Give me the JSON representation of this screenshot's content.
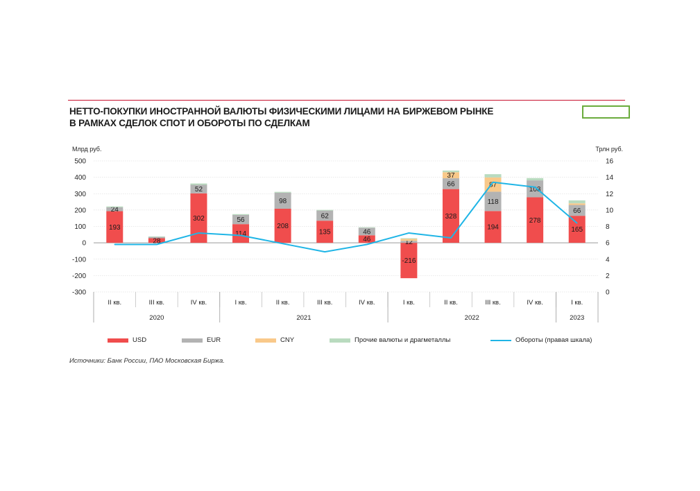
{
  "title": {
    "line1": "НЕТТО-ПОКУПКИ ИНОСТРАННОЙ ВАЛЮТЫ ФИЗИЧЕСКИМИ ЛИЦАМИ НА БИРЖЕВОМ РЫНКЕ",
    "line2": "В РАМКАХ СДЕЛОК СПОТ И ОБОРОТЫ ПО СДЕЛКАМ"
  },
  "source": "Источники: Банк России, ПАО Московская Биржа.",
  "colors": {
    "usd": "#f04d4d",
    "eur": "#b3b3b3",
    "cny": "#f9c98a",
    "other": "#b9dbbf",
    "turnover": "#1fb5e6",
    "accent": "#c8102e",
    "box": "#6aab3c"
  },
  "chart_data": {
    "type": "bar",
    "stacked": true,
    "title": "НЕТТО-ПОКУПКИ ИНОСТРАННОЙ ВАЛЮТЫ ФИЗИЧЕСКИМИ ЛИЦАМИ НА БИРЖЕВОМ РЫНКЕ В РАМКАХ СДЕЛОК СПОТ И ОБОРОТЫ ПО СДЕЛКАМ",
    "ylabel": "Млрд руб.",
    "y2label": "Трлн руб.",
    "ylim": [
      -300,
      500
    ],
    "y2lim": [
      0,
      16
    ],
    "yticks": [
      500,
      400,
      300,
      200,
      100,
      0,
      -100,
      -200,
      -300
    ],
    "y2ticks": [
      16,
      14,
      12,
      10,
      8,
      6,
      4,
      2,
      0
    ],
    "categories": [
      "II кв.",
      "III кв.",
      "IV кв.",
      "I кв.",
      "II кв.",
      "III кв.",
      "IV кв.",
      "I кв.",
      "II кв.",
      "III кв.",
      "IV кв.",
      "I кв."
    ],
    "year_groups": [
      {
        "label": "2020",
        "start": 0,
        "end": 2
      },
      {
        "label": "2021",
        "start": 3,
        "end": 6
      },
      {
        "label": "2022",
        "start": 7,
        "end": 10
      },
      {
        "label": "2023",
        "start": 11,
        "end": 11
      }
    ],
    "series": [
      {
        "name": "USD",
        "key": "usd",
        "values": [
          193,
          28,
          302,
          114,
          208,
          135,
          46,
          -216,
          328,
          194,
          278,
          165
        ]
      },
      {
        "name": "EUR",
        "key": "eur",
        "values": [
          24,
          8,
          52,
          56,
          98,
          62,
          46,
          12,
          66,
          118,
          103,
          66
        ]
      },
      {
        "name": "CNY",
        "key": "cny",
        "values": [
          0,
          0,
          0,
          0,
          0,
          0,
          0,
          12,
          37,
          87,
          0,
          10
        ]
      },
      {
        "name": "Прочие валюты и драгметаллы",
        "key": "other",
        "values": [
          5,
          3,
          8,
          5,
          5,
          4,
          3,
          4,
          10,
          20,
          14,
          18
        ]
      }
    ],
    "labels": [
      {
        "usd": "193",
        "eur": "24"
      },
      {
        "usd": "28"
      },
      {
        "usd": "302",
        "eur": "52"
      },
      {
        "usd": "114",
        "eur": "56"
      },
      {
        "usd": "208",
        "eur": "98"
      },
      {
        "usd": "135",
        "eur": "62"
      },
      {
        "usd": "46",
        "eur": "46"
      },
      {
        "usd": "-216",
        "eur": "12"
      },
      {
        "usd": "328",
        "eur": "66",
        "cny": "37"
      },
      {
        "usd": "194",
        "eur": "118",
        "cny": "87"
      },
      {
        "usd": "278",
        "eur": "103"
      },
      {
        "usd": "165",
        "eur": "66"
      }
    ],
    "line": {
      "name": "Обороты (правая шкала)",
      "values": [
        5.8,
        5.8,
        7.2,
        6.9,
        5.9,
        4.9,
        5.8,
        7.2,
        6.6,
        13.4,
        12.8,
        8.4
      ]
    },
    "legend": [
      {
        "label": "USD",
        "kind": "bar",
        "key": "usd"
      },
      {
        "label": "EUR",
        "kind": "bar",
        "key": "eur"
      },
      {
        "label": "CNY",
        "kind": "bar",
        "key": "cny"
      },
      {
        "label": "Прочие валюты и драгметаллы",
        "kind": "bar",
        "key": "other"
      },
      {
        "label": "Обороты (правая шкала)",
        "kind": "line",
        "key": "turnover"
      }
    ]
  }
}
